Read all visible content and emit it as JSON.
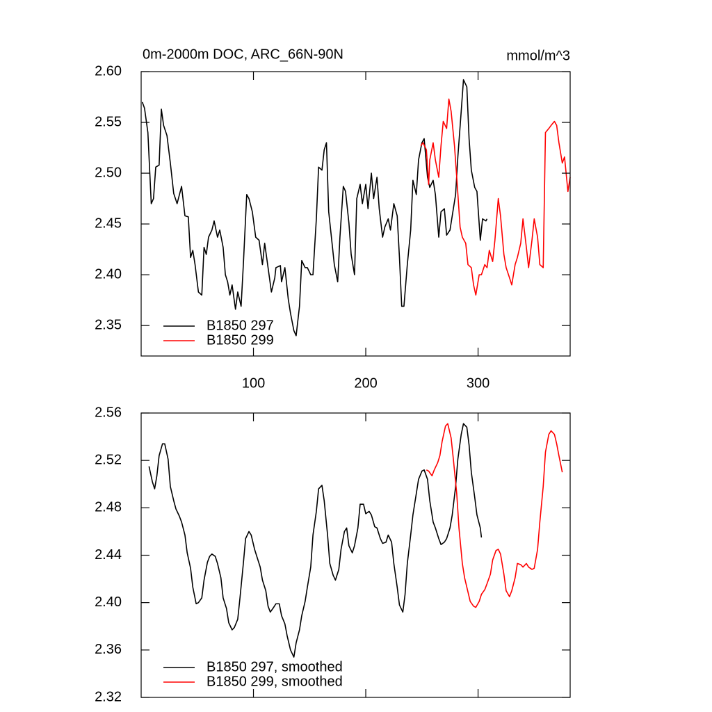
{
  "chart_data": [
    {
      "type": "line",
      "title": "0m-2000m DOC, ARC_66N-90N",
      "right_title": "mmol/m^3",
      "xlim": [
        0,
        382
      ],
      "xticks": [
        100,
        200,
        300
      ],
      "ylim": [
        2.32,
        2.6
      ],
      "yticks": [
        2.35,
        {
          "value": 2.4,
          "label": "2.40"
        },
        2.45,
        {
          "value": 2.5,
          "label": "2.50"
        },
        2.55,
        {
          "value": 2.6,
          "label": "2.60"
        }
      ],
      "legend": "lower left",
      "series": [
        {
          "name": "B1850 297",
          "color": "#000000",
          "x": [
            1,
            3,
            6,
            9,
            11,
            13,
            16,
            18,
            20,
            23,
            26,
            29,
            32,
            36,
            39,
            42,
            44,
            46,
            48,
            51,
            54,
            56,
            58,
            60,
            63,
            65,
            68,
            70,
            73,
            75,
            77,
            79,
            81,
            84,
            86,
            89,
            91,
            94,
            96,
            99,
            102,
            105,
            108,
            110,
            113,
            116,
            119,
            120,
            124,
            125,
            128,
            131,
            133,
            136,
            138,
            141,
            143,
            146,
            148,
            151,
            153,
            156,
            158,
            161,
            163,
            165,
            167,
            170,
            172,
            175,
            177,
            180,
            182,
            185,
            187,
            190,
            192,
            195,
            197,
            200,
            202,
            205,
            207,
            210,
            212,
            215,
            217,
            220,
            222,
            225,
            228,
            230,
            232,
            234,
            237,
            240,
            242,
            245,
            247,
            250,
            252,
            255,
            257,
            260,
            262,
            265,
            267,
            270,
            272,
            275,
            277,
            280,
            282,
            285,
            287,
            290,
            292,
            294,
            297,
            299,
            302,
            304,
            307,
            308
          ],
          "values": [
            2.57,
            2.564,
            2.54,
            2.47,
            2.475,
            2.506,
            2.508,
            2.563,
            2.547,
            2.537,
            2.51,
            2.48,
            2.47,
            2.487,
            2.458,
            2.457,
            2.417,
            2.424,
            2.41,
            2.383,
            2.38,
            2.427,
            2.42,
            2.437,
            2.444,
            2.453,
            2.437,
            2.444,
            2.427,
            2.4,
            2.393,
            2.38,
            2.39,
            2.366,
            2.383,
            2.369,
            2.41,
            2.479,
            2.475,
            2.462,
            2.437,
            2.434,
            2.41,
            2.431,
            2.407,
            2.383,
            2.397,
            2.407,
            2.409,
            2.393,
            2.407,
            2.376,
            2.362,
            2.345,
            2.34,
            2.369,
            2.414,
            2.407,
            2.407,
            2.4,
            2.4,
            2.455,
            2.506,
            2.503,
            2.523,
            2.53,
            2.462,
            2.431,
            2.41,
            2.393,
            2.437,
            2.487,
            2.482,
            2.451,
            2.42,
            2.4,
            2.475,
            2.489,
            2.47,
            2.489,
            2.465,
            2.5,
            2.475,
            2.496,
            2.465,
            2.437,
            2.447,
            2.455,
            2.444,
            2.47,
            2.458,
            2.417,
            2.369,
            2.369,
            2.41,
            2.444,
            2.493,
            2.479,
            2.513,
            2.53,
            2.534,
            2.496,
            2.486,
            2.493,
            2.479,
            2.437,
            2.462,
            2.465,
            2.439,
            2.444,
            2.458,
            2.479,
            2.516,
            2.561,
            2.592,
            2.585,
            2.534,
            2.503,
            2.486,
            2.482,
            2.434,
            2.455,
            2.453,
            2.455
          ]
        },
        {
          "name": "B1850 299",
          "color": "#ff0000",
          "x": [
            249,
            251,
            254,
            256,
            257,
            260,
            262,
            265,
            267,
            269,
            272,
            274,
            276,
            279,
            281,
            284,
            286,
            289,
            291,
            294,
            296,
            298,
            301,
            303,
            306,
            308,
            310,
            313,
            315,
            318,
            320,
            323,
            325,
            328,
            330,
            333,
            335,
            338,
            340,
            343,
            345,
            348,
            350,
            353,
            355,
            358,
            360,
            363,
            365,
            368,
            370,
            372,
            375,
            377,
            380,
            382
          ],
          "values": [
            2.527,
            2.53,
            2.523,
            2.489,
            2.513,
            2.53,
            2.513,
            2.496,
            2.527,
            2.551,
            2.544,
            2.573,
            2.561,
            2.527,
            2.496,
            2.447,
            2.437,
            2.431,
            2.41,
            2.407,
            2.39,
            2.38,
            2.4,
            2.4,
            2.41,
            2.407,
            2.424,
            2.413,
            2.434,
            2.475,
            2.458,
            2.42,
            2.407,
            2.397,
            2.39,
            2.41,
            2.417,
            2.431,
            2.455,
            2.427,
            2.407,
            2.434,
            2.455,
            2.437,
            2.41,
            2.407,
            2.54,
            2.544,
            2.547,
            2.551,
            2.547,
            2.53,
            2.51,
            2.516,
            2.482,
            2.496
          ]
        }
      ]
    },
    {
      "type": "line",
      "xlim": [
        0,
        382
      ],
      "xticks": [
        100,
        200,
        300
      ],
      "xtick_labels": false,
      "ylim": [
        2.32,
        2.56
      ],
      "yticks": [
        2.32,
        2.36,
        {
          "value": 2.4,
          "label": "2.40"
        },
        2.44,
        2.48,
        2.52,
        2.56
      ],
      "legend": "lower left",
      "series": [
        {
          "name": "B1850 297, smoothed",
          "color": "#000000",
          "x": [
            7,
            10,
            12,
            14,
            16,
            19,
            21,
            24,
            26,
            29,
            31,
            34,
            36,
            39,
            41,
            44,
            46,
            49,
            51,
            54,
            56,
            59,
            61,
            63,
            66,
            68,
            71,
            73,
            76,
            78,
            81,
            83,
            86,
            88,
            91,
            93,
            96,
            98,
            101,
            103,
            106,
            108,
            111,
            113,
            115,
            118,
            120,
            123,
            125,
            128,
            130,
            133,
            136,
            138,
            141,
            143,
            146,
            148,
            151,
            153,
            156,
            158,
            161,
            163,
            166,
            168,
            171,
            173,
            176,
            178,
            181,
            183,
            185,
            188,
            190,
            193,
            195,
            198,
            200,
            203,
            205,
            208,
            210,
            213,
            215,
            218,
            220,
            223,
            225,
            228,
            230,
            233,
            235,
            237,
            240,
            242,
            245,
            247,
            250,
            252,
            255,
            257,
            260,
            262,
            265,
            267,
            270,
            272,
            275,
            277,
            280,
            282,
            285,
            287,
            290,
            292,
            294,
            297,
            299,
            302,
            303
          ],
          "values": [
            2.515,
            2.502,
            2.496,
            2.507,
            2.524,
            2.534,
            2.534,
            2.521,
            2.498,
            2.486,
            2.479,
            2.473,
            2.468,
            2.457,
            2.442,
            2.429,
            2.413,
            2.399,
            2.4,
            2.404,
            2.419,
            2.434,
            2.439,
            2.441,
            2.439,
            2.433,
            2.421,
            2.404,
            2.395,
            2.383,
            2.377,
            2.379,
            2.386,
            2.404,
            2.433,
            2.454,
            2.46,
            2.457,
            2.445,
            2.439,
            2.43,
            2.419,
            2.41,
            2.397,
            2.392,
            2.396,
            2.399,
            2.399,
            2.389,
            2.382,
            2.372,
            2.36,
            2.354,
            2.366,
            2.377,
            2.389,
            2.401,
            2.413,
            2.43,
            2.457,
            2.477,
            2.496,
            2.499,
            2.486,
            2.457,
            2.433,
            2.423,
            2.419,
            2.428,
            2.445,
            2.46,
            2.463,
            2.448,
            2.442,
            2.448,
            2.463,
            2.483,
            2.483,
            2.475,
            2.477,
            2.474,
            2.464,
            2.463,
            2.454,
            2.45,
            2.451,
            2.457,
            2.451,
            2.433,
            2.413,
            2.398,
            2.392,
            2.407,
            2.433,
            2.457,
            2.474,
            2.492,
            2.504,
            2.511,
            2.512,
            2.504,
            2.486,
            2.468,
            2.463,
            2.454,
            2.449,
            2.451,
            2.454,
            2.463,
            2.474,
            2.498,
            2.521,
            2.542,
            2.551,
            2.548,
            2.533,
            2.51,
            2.489,
            2.474,
            2.463,
            2.455
          ]
        },
        {
          "name": "B1850 299, smoothed",
          "color": "#ff0000",
          "x": [
            254,
            256,
            259,
            261,
            264,
            266,
            268,
            271,
            273,
            276,
            278,
            281,
            283,
            286,
            288,
            291,
            293,
            296,
            298,
            301,
            303,
            306,
            308,
            311,
            313,
            316,
            318,
            320,
            323,
            325,
            328,
            330,
            333,
            335,
            338,
            340,
            343,
            345,
            348,
            350,
            353,
            355,
            358,
            360,
            363,
            365,
            368,
            370,
            372,
            375
          ],
          "values": [
            2.512,
            2.511,
            2.507,
            2.512,
            2.518,
            2.524,
            2.536,
            2.549,
            2.551,
            2.539,
            2.521,
            2.492,
            2.463,
            2.433,
            2.421,
            2.409,
            2.401,
            2.397,
            2.396,
            2.401,
            2.407,
            2.411,
            2.416,
            2.424,
            2.436,
            2.444,
            2.445,
            2.441,
            2.424,
            2.41,
            2.405,
            2.41,
            2.421,
            2.433,
            2.432,
            2.43,
            2.433,
            2.43,
            2.428,
            2.429,
            2.445,
            2.468,
            2.498,
            2.527,
            2.542,
            2.545,
            2.542,
            2.534,
            2.524,
            2.51
          ]
        }
      ]
    }
  ]
}
